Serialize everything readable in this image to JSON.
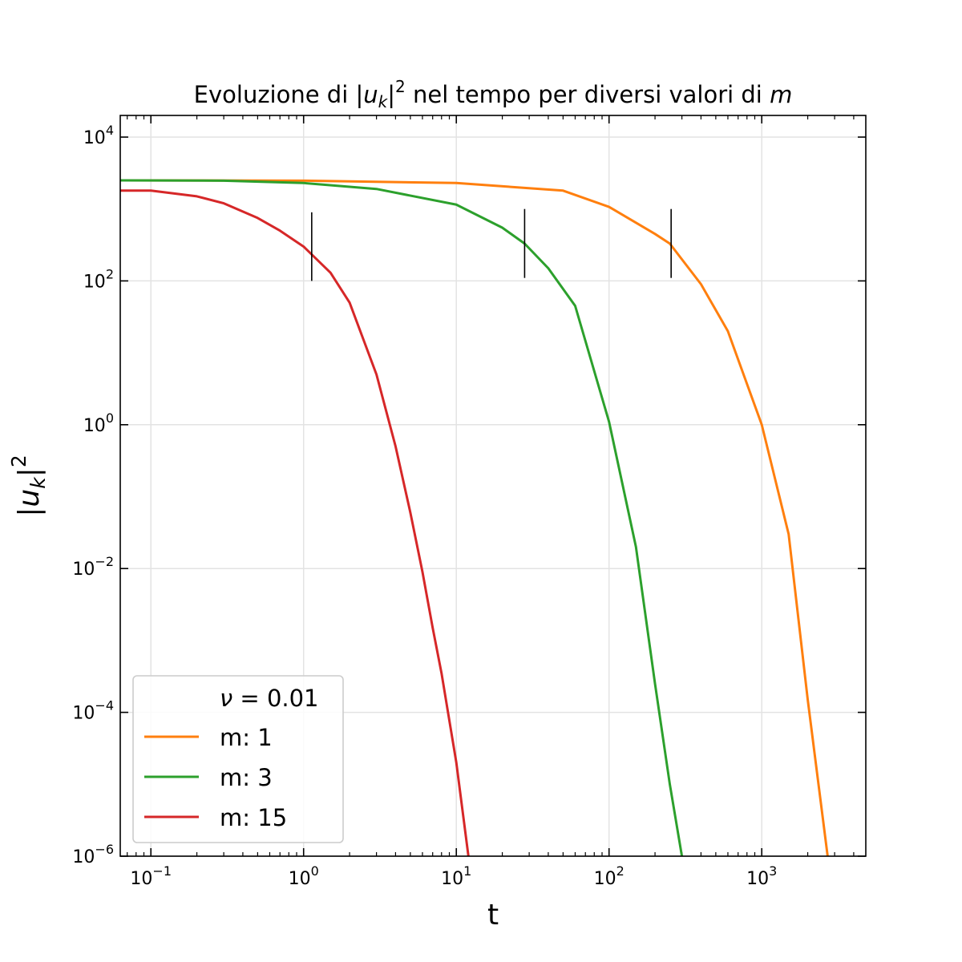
{
  "chart_data": {
    "type": "line",
    "title": {
      "prefix": "Evoluzione di |",
      "var": "u",
      "sub": "k",
      "bar": "|",
      "sup": "2",
      "mid": " nel tempo per diversi valori di ",
      "m": "m"
    },
    "xlabel": "t",
    "ylabel": {
      "bar": "|",
      "var": "u",
      "sub": "k",
      "bar2": "|",
      "sup": "2"
    },
    "xscale": "log",
    "yscale": "log",
    "xlim": [
      0.063,
      4800
    ],
    "ylim": [
      1e-06,
      20000
    ],
    "grid": true,
    "x_ticks": [
      {
        "value": 0.1,
        "base": "10",
        "exp": "−1"
      },
      {
        "value": 1,
        "base": "10",
        "exp": "0"
      },
      {
        "value": 10,
        "base": "10",
        "exp": "1"
      },
      {
        "value": 100,
        "base": "10",
        "exp": "2"
      },
      {
        "value": 1000,
        "base": "10",
        "exp": "3"
      }
    ],
    "y_ticks": [
      {
        "value": 1e-06,
        "base": "10",
        "exp": "−6"
      },
      {
        "value": 0.0001,
        "base": "10",
        "exp": "−4"
      },
      {
        "value": 0.01,
        "base": "10",
        "exp": "−2"
      },
      {
        "value": 1,
        "base": "10",
        "exp": "0"
      },
      {
        "value": 100,
        "base": "10",
        "exp": "2"
      },
      {
        "value": 10000,
        "base": "10",
        "exp": "4"
      }
    ],
    "legend": {
      "placement": "lower-left",
      "header": {
        "nu": "ν",
        "rest": " = 0.01"
      }
    },
    "series": [
      {
        "name": "m: 1",
        "color": "#ff7f0e",
        "points": [
          [
            0.063,
            2500
          ],
          [
            1,
            2480
          ],
          [
            10,
            2300
          ],
          [
            50,
            1800
          ],
          [
            100,
            1070
          ],
          [
            200,
            450
          ],
          [
            250,
            330
          ],
          [
            400,
            90
          ],
          [
            600,
            20
          ],
          [
            1000,
            1.0
          ],
          [
            1500,
            0.03
          ],
          [
            2000,
            0.00015
          ],
          [
            2700,
            1e-06
          ]
        ]
      },
      {
        "name": "m: 3",
        "color": "#2ca02c",
        "points": [
          [
            0.063,
            2500
          ],
          [
            0.3,
            2480
          ],
          [
            1,
            2300
          ],
          [
            3,
            1900
          ],
          [
            10,
            1150
          ],
          [
            20,
            550
          ],
          [
            28,
            330
          ],
          [
            40,
            150
          ],
          [
            60,
            45
          ],
          [
            100,
            1.1
          ],
          [
            150,
            0.02
          ],
          [
            200,
            0.00025
          ],
          [
            250,
            1e-05
          ],
          [
            300,
            1e-06
          ]
        ]
      },
      {
        "name": "m: 15",
        "color": "#d62728",
        "points": [
          [
            0.063,
            1800
          ],
          [
            0.1,
            1800
          ],
          [
            0.2,
            1500
          ],
          [
            0.3,
            1200
          ],
          [
            0.5,
            750
          ],
          [
            0.7,
            500
          ],
          [
            1,
            300
          ],
          [
            1.5,
            130
          ],
          [
            2,
            50
          ],
          [
            3,
            5
          ],
          [
            4,
            0.5
          ],
          [
            5,
            0.06
          ],
          [
            6,
            0.009
          ],
          [
            7,
            0.0015
          ],
          [
            8,
            0.00035
          ],
          [
            10,
            2e-05
          ],
          [
            12,
            1e-06
          ]
        ]
      }
    ],
    "markers": [
      {
        "x": 1.13,
        "ymin": 100,
        "ymax": 900
      },
      {
        "x": 28,
        "ymin": 110,
        "ymax": 1000
      },
      {
        "x": 255,
        "ymin": 110,
        "ymax": 1000
      }
    ]
  }
}
